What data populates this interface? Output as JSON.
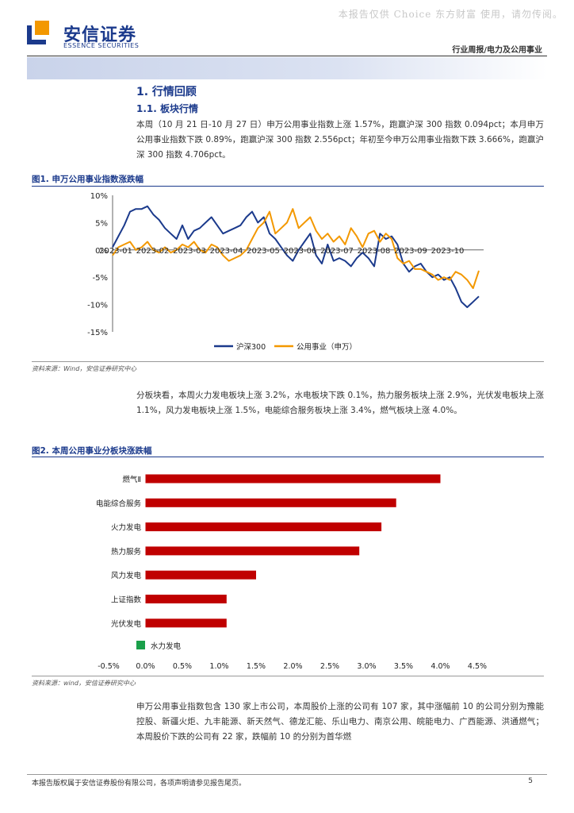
{
  "watermark": "本报告仅供 Choice 东方财富 使用，请勿传阅。",
  "brand": {
    "cn": "安信证券",
    "en": "ESSENCE SECURITIES"
  },
  "header": {
    "category": "行业周报/电力及公用事业"
  },
  "section": {
    "h1": "1. 行情回顾",
    "h2": "1.1. 板块行情",
    "para1": "本周（10 月 21 日-10 月 27 日）申万公用事业指数上涨 1.57%，跑赢沪深 300 指数 0.094pct；本月申万公用事业指数下跌 0.89%，跑赢沪深 300 指数 2.556pct；年初至今申万公用事业指数下跌 3.666%，跑赢沪深 300 指数 4.706pct。"
  },
  "fig1": {
    "title": "图1. 申万公用事业指数涨跌幅",
    "source": "资料来源：Wind，安信证券研究中心"
  },
  "para2": "分板块看，本周火力发电板块上涨 3.2%，水电板块下跌 0.1%，热力服务板块上涨 2.9%，光伏发电板块上涨 1.1%，风力发电板块上涨 1.5%，电能综合服务板块上涨 3.4%，燃气板块上涨 4.0%。",
  "fig2": {
    "title": "图2. 本周公用事业分板块涨跌幅",
    "source": "资料来源：wind，安信证券研究中心"
  },
  "para3": "申万公用事业指数包含 130 家上市公司，本周股价上涨的公司有 107 家，其中涨幅前 10 的公司分别为豫能控股、新疆火炬、九丰能源、新天然气、德龙汇能、乐山电力、南京公用、皖能电力、广西能源、洪通燃气；本周股价下跌的公司有 22 家，跌幅前 10 的分别为首华燃",
  "footer": {
    "text": "本报告版权属于安信证券股份有限公司，各项声明请参见报告尾页。",
    "page": "5"
  },
  "colors": {
    "navy": "#1b3a8c",
    "orange": "#f39800",
    "red": "#c00000",
    "green": "#1aa04a"
  },
  "chart_data": [
    {
      "type": "line",
      "title": "图1. 申万公用事业指数涨跌幅",
      "x_ticks": [
        "2023-01",
        "2023-02",
        "2023-03",
        "2023-04",
        "2023-05",
        "2023-06",
        "2023-07",
        "2023-08",
        "2023-09",
        "2023-10"
      ],
      "y_ticks": [
        "10%",
        "5%",
        "0%",
        "-5%",
        "-10%",
        "-15%"
      ],
      "ylim": [
        -15,
        10
      ],
      "series": [
        {
          "name": "沪深300",
          "color": "#1b3a8c",
          "values": [
            0.5,
            2.5,
            4.5,
            7.0,
            7.5,
            7.5,
            8.0,
            6.5,
            5.5,
            4.0,
            3.0,
            2.0,
            4.5,
            2.0,
            3.5,
            4.0,
            5.0,
            6.0,
            4.5,
            3.0,
            3.5,
            4.0,
            4.5,
            6.0,
            7.0,
            5.0,
            6.0,
            3.0,
            2.0,
            0.5,
            -1.0,
            -2.0,
            0.0,
            1.5,
            3.0,
            -1.0,
            -2.5,
            1.0,
            -2.0,
            -1.5,
            -2.0,
            -3.0,
            -1.5,
            -0.5,
            -1.5,
            -3.0,
            3.0,
            2.0,
            2.5,
            1.0,
            -2.5,
            -4.0,
            -3.0,
            -2.5,
            -4.0,
            -5.0,
            -4.5,
            -5.5,
            -5.0,
            -7.0,
            -9.5,
            -10.5,
            -9.5,
            -8.5
          ]
        },
        {
          "name": "公用事业（申万）",
          "color": "#f39800",
          "values": [
            -1.0,
            0.5,
            1.0,
            1.5,
            0.0,
            0.5,
            1.5,
            0.0,
            -0.5,
            0.5,
            -0.5,
            0.0,
            1.0,
            0.5,
            1.5,
            0.0,
            -0.5,
            1.0,
            0.5,
            -1.0,
            -2.0,
            -1.5,
            -1.0,
            0.0,
            2.0,
            4.0,
            5.0,
            7.0,
            3.0,
            4.0,
            5.0,
            7.5,
            4.0,
            5.0,
            6.0,
            3.5,
            2.0,
            3.0,
            1.5,
            2.5,
            1.0,
            4.0,
            2.5,
            0.5,
            3.0,
            3.5,
            1.5,
            3.0,
            2.0,
            -1.5,
            -2.5,
            -2.0,
            -3.5,
            -3.5,
            -4.0,
            -4.5,
            -5.5,
            -5.0,
            -5.5,
            -4.0,
            -4.5,
            -5.5,
            -7.0,
            -3.8
          ]
        }
      ],
      "legend": [
        "沪深300",
        "公用事业（申万）"
      ],
      "legend_position": "bottom-center"
    },
    {
      "type": "bar",
      "orientation": "horizontal",
      "title": "图2. 本周公用事业分板块涨跌幅",
      "categories": [
        "燃气Ⅱ",
        "电能综合服务",
        "火力发电",
        "热力服务",
        "风力发电",
        "上证指数",
        "光伏发电"
      ],
      "values": [
        4.0,
        3.4,
        3.2,
        2.9,
        1.5,
        1.1,
        1.1
      ],
      "x_ticks": [
        "-0.5%",
        "0.0%",
        "0.5%",
        "1.0%",
        "1.5%",
        "2.0%",
        "2.5%",
        "3.0%",
        "3.5%",
        "4.0%",
        "4.5%"
      ],
      "xlim": [
        -0.5,
        4.5
      ],
      "extra_legend": "水力发电",
      "legend_position": "bottom-left"
    }
  ]
}
